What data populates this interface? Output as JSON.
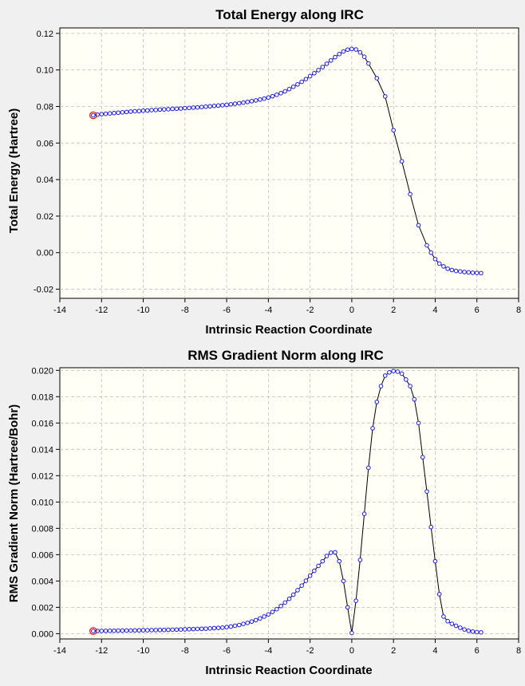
{
  "colors": {
    "background": "#f0f0f0",
    "plot_background": "#fffff5",
    "grid": "#c0c0c0",
    "marker": "#1a1ae6",
    "start_marker": "#e01010",
    "line": "#000000"
  },
  "chart_data": [
    {
      "type": "line",
      "title": "Total Energy along IRC",
      "xlabel": "Intrinsic Reaction Coordinate",
      "ylabel": "Total Energy (Hartree)",
      "xlim": [
        -14,
        8
      ],
      "ylim": [
        -0.025,
        0.123
      ],
      "xticks": [
        -14,
        -12,
        -10,
        -8,
        -6,
        -4,
        -2,
        0,
        2,
        4,
        6,
        8
      ],
      "yticks": [
        -0.02,
        0.0,
        0.02,
        0.04,
        0.06,
        0.08,
        0.1,
        0.12
      ],
      "xtick_labels": [
        "-14",
        "-12",
        "-10",
        "-8",
        "-6",
        "-4",
        "-2",
        "0",
        "2",
        "4",
        "6",
        "8"
      ],
      "ytick_labels": [
        "-0.02",
        "0.00",
        "0.02",
        "0.04",
        "0.06",
        "0.08",
        "0.10",
        "0.12"
      ],
      "grid": true,
      "legend": "none",
      "highlighted_point_index": 0,
      "series": [
        {
          "x": [
            -12.4,
            -12.2,
            -12.0,
            -11.8,
            -11.6,
            -11.4,
            -11.2,
            -11.0,
            -10.8,
            -10.6,
            -10.4,
            -10.2,
            -10.0,
            -9.8,
            -9.6,
            -9.4,
            -9.2,
            -9.0,
            -8.8,
            -8.6,
            -8.4,
            -8.2,
            -8.0,
            -7.8,
            -7.6,
            -7.4,
            -7.2,
            -7.0,
            -6.8,
            -6.6,
            -6.4,
            -6.2,
            -6.0,
            -5.8,
            -5.6,
            -5.4,
            -5.2,
            -5.0,
            -4.8,
            -4.6,
            -4.4,
            -4.2,
            -4.0,
            -3.8,
            -3.6,
            -3.4,
            -3.2,
            -3.0,
            -2.8,
            -2.6,
            -2.4,
            -2.2,
            -2.0,
            -1.8,
            -1.6,
            -1.4,
            -1.2,
            -1.0,
            -0.8,
            -0.6,
            -0.4,
            -0.2,
            0.0,
            0.2,
            0.4,
            0.6,
            0.8,
            1.2,
            1.6,
            2.0,
            2.4,
            2.8,
            3.2,
            3.6,
            3.8,
            4.0,
            4.2,
            4.4,
            4.6,
            4.8,
            5.0,
            5.2,
            5.4,
            5.6,
            5.8,
            6.0,
            6.2
          ],
          "y": [
            0.0752,
            0.0755,
            0.0758,
            0.076,
            0.0762,
            0.0764,
            0.0766,
            0.0768,
            0.077,
            0.0772,
            0.0774,
            0.0775,
            0.0777,
            0.0778,
            0.078,
            0.0781,
            0.0783,
            0.0784,
            0.0785,
            0.0787,
            0.0788,
            0.0789,
            0.0791,
            0.0792,
            0.0794,
            0.0795,
            0.0797,
            0.0799,
            0.0801,
            0.0803,
            0.0805,
            0.0807,
            0.0809,
            0.0812,
            0.0815,
            0.0818,
            0.0821,
            0.0825,
            0.0829,
            0.0833,
            0.0838,
            0.0843,
            0.0849,
            0.0856,
            0.0864,
            0.0873,
            0.0883,
            0.0895,
            0.0908,
            0.0921,
            0.0935,
            0.095,
            0.0966,
            0.0982,
            0.0999,
            0.1016,
            0.1034,
            0.1052,
            0.107,
            0.1087,
            0.1101,
            0.1111,
            0.1115,
            0.1112,
            0.1096,
            0.1072,
            0.1035,
            0.0955,
            0.0855,
            0.067,
            0.05,
            0.032,
            0.015,
            0.004,
            0.0,
            -0.0035,
            -0.006,
            -0.0075,
            -0.0088,
            -0.0095,
            -0.01,
            -0.0103,
            -0.0106,
            -0.0108,
            -0.011,
            -0.0111,
            -0.0112
          ]
        }
      ]
    },
    {
      "type": "line",
      "title": "RMS Gradient Norm along IRC",
      "xlabel": "Intrinsic Reaction Coordinate",
      "ylabel": "RMS Gradient Norm (Hartree/Bohr)",
      "xlim": [
        -14,
        8
      ],
      "ylim": [
        -0.0004,
        0.0202
      ],
      "xticks": [
        -14,
        -12,
        -10,
        -8,
        -6,
        -4,
        -2,
        0,
        2,
        4,
        6,
        8
      ],
      "yticks": [
        0.0,
        0.002,
        0.004,
        0.006,
        0.008,
        0.01,
        0.012,
        0.014,
        0.016,
        0.018,
        0.02
      ],
      "xtick_labels": [
        "-14",
        "-12",
        "-10",
        "-8",
        "-6",
        "-4",
        "-2",
        "0",
        "2",
        "4",
        "6",
        "8"
      ],
      "ytick_labels": [
        "0.000",
        "0.002",
        "0.004",
        "0.006",
        "0.008",
        "0.010",
        "0.012",
        "0.014",
        "0.016",
        "0.018",
        "0.020"
      ],
      "grid": true,
      "legend": "none",
      "highlighted_point_index": 0,
      "series": [
        {
          "x": [
            -12.4,
            -12.2,
            -12.0,
            -11.8,
            -11.6,
            -11.4,
            -11.2,
            -11.0,
            -10.8,
            -10.6,
            -10.4,
            -10.2,
            -10.0,
            -9.8,
            -9.6,
            -9.4,
            -9.2,
            -9.0,
            -8.8,
            -8.6,
            -8.4,
            -8.2,
            -8.0,
            -7.8,
            -7.6,
            -7.4,
            -7.2,
            -7.0,
            -6.8,
            -6.6,
            -6.4,
            -6.2,
            -6.0,
            -5.8,
            -5.6,
            -5.4,
            -5.2,
            -5.0,
            -4.8,
            -4.6,
            -4.4,
            -4.2,
            -4.0,
            -3.8,
            -3.6,
            -3.4,
            -3.2,
            -3.0,
            -2.8,
            -2.6,
            -2.4,
            -2.2,
            -2.0,
            -1.8,
            -1.6,
            -1.4,
            -1.2,
            -1.0,
            -0.8,
            -0.6,
            -0.4,
            -0.2,
            0.0,
            0.2,
            0.4,
            0.6,
            0.8,
            1.0,
            1.2,
            1.4,
            1.6,
            1.8,
            2.0,
            2.2,
            2.4,
            2.6,
            2.8,
            3.0,
            3.2,
            3.4,
            3.6,
            3.8,
            4.0,
            4.2,
            4.4,
            4.6,
            4.8,
            5.0,
            5.2,
            5.4,
            5.6,
            5.8,
            6.0,
            6.2
          ],
          "y": [
            0.0002,
            0.0002,
            0.00021,
            0.00021,
            0.00022,
            0.00022,
            0.00023,
            0.00023,
            0.00024,
            0.00024,
            0.00025,
            0.00025,
            0.00026,
            0.00026,
            0.00027,
            0.00027,
            0.00028,
            0.00028,
            0.00029,
            0.0003,
            0.00031,
            0.00032,
            0.00033,
            0.00034,
            0.00035,
            0.00036,
            0.00037,
            0.00038,
            0.0004,
            0.00042,
            0.00044,
            0.00046,
            0.0005,
            0.00054,
            0.0006,
            0.00066,
            0.00074,
            0.00082,
            0.00092,
            0.00103,
            0.00116,
            0.0013,
            0.00146,
            0.00165,
            0.00186,
            0.0021,
            0.00236,
            0.00265,
            0.00296,
            0.0033,
            0.00365,
            0.00402,
            0.0044,
            0.00478,
            0.00515,
            0.0055,
            0.0059,
            0.00615,
            0.00618,
            0.0055,
            0.004,
            0.002,
            5e-05,
            0.0025,
            0.0056,
            0.0091,
            0.0126,
            0.0156,
            0.0176,
            0.0188,
            0.0196,
            0.01985,
            0.01995,
            0.0199,
            0.01975,
            0.0193,
            0.0188,
            0.0178,
            0.016,
            0.0134,
            0.0108,
            0.0081,
            0.0055,
            0.003,
            0.0013,
            0.00095,
            0.00075,
            0.0006,
            0.00045,
            0.00032,
            0.00022,
            0.00016,
            0.00012,
            0.0001
          ]
        }
      ]
    }
  ]
}
